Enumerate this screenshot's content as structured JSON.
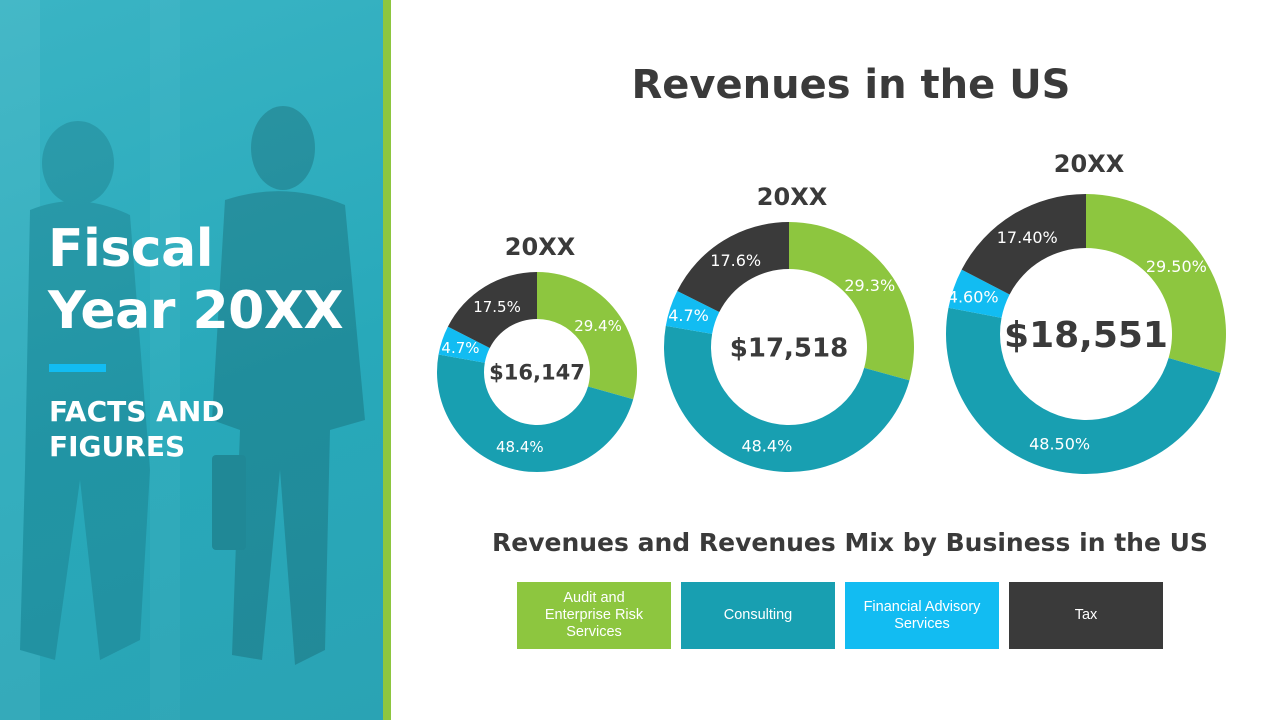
{
  "left_panel": {
    "title_lines": [
      "Fiscal",
      "Year 20XX"
    ],
    "subtitle_lines": [
      "FACTS AND",
      "FIGURES"
    ]
  },
  "colors": {
    "panel": "#2aaabb",
    "accent": "#8dc63f",
    "audit": "#8dc63f",
    "consulting": "#189fb1",
    "financial": "#12bcf2",
    "tax": "#3a3a3a"
  },
  "chart_data": {
    "type": "donut",
    "title": "Revenues in the US",
    "subtitle": "Revenues and Revenues Mix by Business in the US",
    "categories": [
      "Audit and Enterprise Risk Services",
      "Consulting",
      "Financial Advisory Services",
      "Tax"
    ],
    "legend_position": "bottom",
    "charts": [
      {
        "label": "20XX",
        "total": "$16,147",
        "values": [
          29.4,
          48.4,
          4.7,
          17.5
        ],
        "value_labels": [
          "29.4%",
          "48.4%",
          "4.7%",
          "17.5%"
        ]
      },
      {
        "label": "20XX",
        "total": "$17,518",
        "values": [
          29.3,
          48.4,
          4.7,
          17.6
        ],
        "value_labels": [
          "29.3%",
          "48.4%",
          "4.7%",
          "17.6%"
        ]
      },
      {
        "label": "20XX",
        "total": "$18,551",
        "values": [
          29.5,
          48.5,
          4.6,
          17.4
        ],
        "value_labels": [
          "29.50%",
          "48.50%",
          "4.60%",
          "17.40%"
        ]
      }
    ]
  },
  "legend": [
    {
      "label": "Audit and Enterprise Risk Services",
      "color": "#8dc63f"
    },
    {
      "label": "Consulting",
      "color": "#189fb1"
    },
    {
      "label": "Financial Advisory Services",
      "color": "#12bcf2"
    },
    {
      "label": "Tax",
      "color": "#3a3a3a"
    }
  ]
}
